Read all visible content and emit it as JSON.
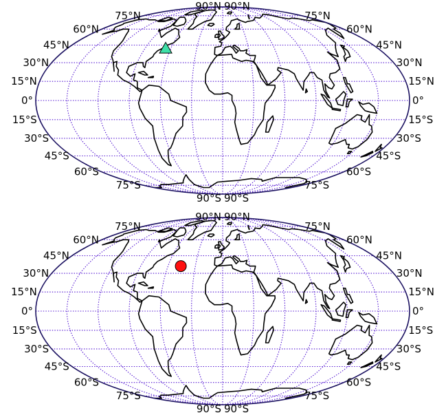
{
  "colors": {
    "graticule": "#4b0bd0",
    "border": "#1a1060",
    "coastline": "#000000",
    "triangle_marker": "#3ee0a8",
    "circle_marker": "#ff1010"
  },
  "maps": [
    {
      "projection": "mollweide",
      "lat_labels_north": [
        "15°N",
        "30°N",
        "45°N",
        "60°N",
        "75°N"
      ],
      "lat_label_equator": "0°",
      "lat_labels_south": [
        "15°S",
        "30°S",
        "45°S",
        "60°S",
        "75°S"
      ],
      "pole_label_north": "90°N",
      "pole_label_south": "90°S",
      "marker": {
        "shape": "triangle",
        "lon": -66,
        "lat": 42
      }
    },
    {
      "projection": "mollweide",
      "lat_labels_north": [
        "15°N",
        "30°N",
        "45°N",
        "60°N",
        "75°N"
      ],
      "lat_label_equator": "0°",
      "lat_labels_south": [
        "15°S",
        "30°S",
        "45°S",
        "60°S",
        "75°S"
      ],
      "pole_label_north": "90°N",
      "pole_label_south": "90°S",
      "marker": {
        "shape": "circle",
        "lon": -46,
        "lat": 36
      }
    }
  ]
}
